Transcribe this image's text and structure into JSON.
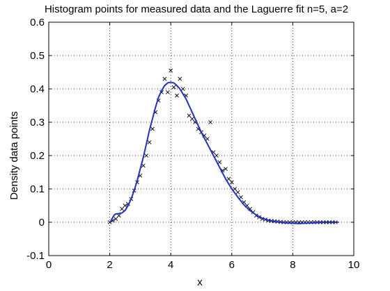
{
  "chart_data": {
    "type": "scatter",
    "title": "Histogram points for measured data and the Laguerre fit n=5, a=2",
    "xlabel": "x",
    "ylabel": "Density data points",
    "xlim": [
      0,
      10
    ],
    "ylim": [
      -0.1,
      0.6
    ],
    "x_ticks": [
      "0",
      "2",
      "4",
      "6",
      "8",
      "10"
    ],
    "y_ticks": [
      "-0.1",
      "0",
      "0.1",
      "0.2",
      "0.3",
      "0.4",
      "0.5",
      "0.6"
    ],
    "grid": true,
    "series": [
      {
        "marker": "x",
        "color": "#000000",
        "points": [
          [
            2.0,
            0.0
          ],
          [
            2.1,
            0.005
          ],
          [
            2.2,
            0.01
          ],
          [
            2.3,
            0.02
          ],
          [
            2.4,
            0.04
          ],
          [
            2.5,
            0.05
          ],
          [
            2.6,
            0.055
          ],
          [
            2.7,
            0.07
          ],
          [
            2.8,
            0.095
          ],
          [
            2.9,
            0.12
          ],
          [
            3.0,
            0.14
          ],
          [
            3.1,
            0.17
          ],
          [
            3.2,
            0.2
          ],
          [
            3.3,
            0.24
          ],
          [
            3.4,
            0.28
          ],
          [
            3.5,
            0.33
          ],
          [
            3.6,
            0.365
          ],
          [
            3.7,
            0.39
          ],
          [
            3.8,
            0.43
          ],
          [
            3.9,
            0.39
          ],
          [
            4.0,
            0.455
          ],
          [
            4.1,
            0.405
          ],
          [
            4.2,
            0.38
          ],
          [
            4.3,
            0.43
          ],
          [
            4.4,
            0.4
          ],
          [
            4.5,
            0.38
          ],
          [
            4.6,
            0.32
          ],
          [
            4.7,
            0.31
          ],
          [
            4.8,
            0.3
          ],
          [
            4.9,
            0.28
          ],
          [
            5.0,
            0.27
          ],
          [
            5.1,
            0.26
          ],
          [
            5.2,
            0.25
          ],
          [
            5.3,
            0.3
          ],
          [
            5.4,
            0.21
          ],
          [
            5.5,
            0.2
          ],
          [
            5.6,
            0.18
          ],
          [
            5.7,
            0.155
          ],
          [
            5.8,
            0.16
          ],
          [
            5.9,
            0.13
          ],
          [
            6.0,
            0.12
          ],
          [
            6.1,
            0.1
          ],
          [
            6.2,
            0.09
          ],
          [
            6.3,
            0.075
          ],
          [
            6.4,
            0.06
          ],
          [
            6.5,
            0.05
          ],
          [
            6.6,
            0.04
          ],
          [
            6.7,
            0.03
          ],
          [
            6.8,
            0.02
          ],
          [
            6.9,
            0.015
          ],
          [
            7.0,
            0.01
          ],
          [
            7.1,
            0.008
          ],
          [
            7.2,
            0.005
          ],
          [
            7.3,
            0.004
          ],
          [
            7.4,
            0.003
          ],
          [
            7.5,
            0.002
          ],
          [
            7.6,
            0.001
          ],
          [
            7.7,
            0.0
          ],
          [
            7.8,
            0.0
          ],
          [
            7.9,
            0.0
          ],
          [
            8.0,
            0.0
          ],
          [
            8.1,
            0.0
          ],
          [
            8.2,
            0.0
          ],
          [
            8.3,
            0.0
          ],
          [
            8.4,
            0.0
          ],
          [
            8.5,
            0.0
          ],
          [
            8.6,
            0.0
          ],
          [
            8.7,
            0.0
          ],
          [
            8.8,
            0.0
          ],
          [
            8.9,
            0.0
          ],
          [
            9.0,
            0.0
          ],
          [
            9.1,
            0.0
          ],
          [
            9.2,
            0.0
          ],
          [
            9.3,
            0.0
          ],
          [
            9.4,
            0.0
          ]
        ]
      },
      {
        "marker": "line",
        "color": "#1f2fcf",
        "points": [
          [
            2.0,
            0.0
          ],
          [
            2.05,
            0.005
          ],
          [
            2.1,
            0.015
          ],
          [
            2.15,
            0.022
          ],
          [
            2.2,
            0.025
          ],
          [
            2.3,
            0.026
          ],
          [
            2.4,
            0.028
          ],
          [
            2.5,
            0.035
          ],
          [
            2.6,
            0.05
          ],
          [
            2.7,
            0.07
          ],
          [
            2.8,
            0.095
          ],
          [
            2.9,
            0.125
          ],
          [
            3.0,
            0.16
          ],
          [
            3.1,
            0.195
          ],
          [
            3.2,
            0.235
          ],
          [
            3.3,
            0.275
          ],
          [
            3.4,
            0.31
          ],
          [
            3.5,
            0.345
          ],
          [
            3.6,
            0.375
          ],
          [
            3.7,
            0.395
          ],
          [
            3.8,
            0.41
          ],
          [
            3.9,
            0.418
          ],
          [
            4.0,
            0.42
          ],
          [
            4.1,
            0.418
          ],
          [
            4.2,
            0.41
          ],
          [
            4.3,
            0.4
          ],
          [
            4.4,
            0.385
          ],
          [
            4.5,
            0.37
          ],
          [
            4.6,
            0.35
          ],
          [
            4.7,
            0.33
          ],
          [
            4.8,
            0.31
          ],
          [
            4.9,
            0.29
          ],
          [
            5.0,
            0.27
          ],
          [
            5.2,
            0.235
          ],
          [
            5.4,
            0.2
          ],
          [
            5.6,
            0.165
          ],
          [
            5.8,
            0.13
          ],
          [
            6.0,
            0.1
          ],
          [
            6.2,
            0.075
          ],
          [
            6.4,
            0.052
          ],
          [
            6.6,
            0.035
          ],
          [
            6.8,
            0.022
          ],
          [
            7.0,
            0.012
          ],
          [
            7.2,
            0.006
          ],
          [
            7.4,
            0.002
          ],
          [
            7.6,
            0.0
          ],
          [
            7.8,
            -0.002
          ],
          [
            8.0,
            -0.003
          ],
          [
            8.2,
            -0.004
          ],
          [
            8.4,
            -0.003
          ],
          [
            8.6,
            -0.002
          ],
          [
            8.8,
            -0.001
          ],
          [
            9.0,
            0.0
          ],
          [
            9.2,
            0.0
          ],
          [
            9.5,
            0.0
          ]
        ]
      }
    ]
  }
}
